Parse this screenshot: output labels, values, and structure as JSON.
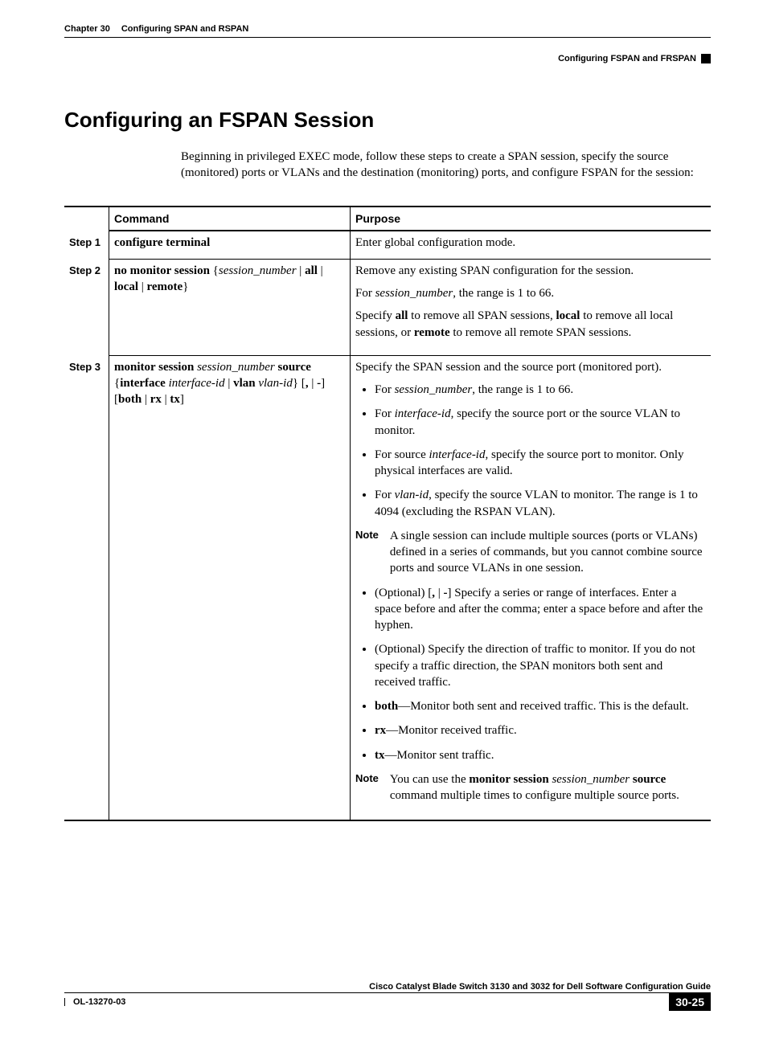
{
  "header": {
    "chapter_label": "Chapter 30",
    "chapter_title": "Configuring SPAN and RSPAN",
    "section_right": "Configuring FSPAN and FRSPAN"
  },
  "title": "Configuring an FSPAN Session",
  "intro": "Beginning in privileged EXEC mode, follow these steps to create a SPAN session, specify the source (monitored) ports or VLANs and the destination (monitoring) ports, and configure FSPAN for the session:",
  "table": {
    "head_command": "Command",
    "head_purpose": "Purpose",
    "step1": {
      "label": "Step 1",
      "command": "configure terminal",
      "purpose": "Enter global configuration mode."
    },
    "step2": {
      "label": "Step 2",
      "purpose_p1": "Remove any existing SPAN configuration for the session.",
      "purpose_p2_a": "For ",
      "purpose_p2_i": "session_number",
      "purpose_p2_b": ", the range is 1 to 66.",
      "purpose_p3_a": "Specify ",
      "purpose_p3_b1": "all",
      "purpose_p3_c": " to remove all SPAN sessions, ",
      "purpose_p3_b2": "local",
      "purpose_p3_d": " to remove all local sessions, or ",
      "purpose_p3_b3": "remote",
      "purpose_p3_e": " to remove all remote SPAN sessions."
    },
    "step3": {
      "label": "Step 3",
      "purpose_p1": "Specify the SPAN session and the source port (monitored port).",
      "b1_a": "For ",
      "b1_i": "session_number",
      "b1_b": ", the range is 1 to 66.",
      "b2_a": "For ",
      "b2_i": "interface-id",
      "b2_b": ", specify the source port or the source VLAN to monitor.",
      "b3_a": "For source ",
      "b3_i": "interface-id",
      "b3_b": ", specify the source port to monitor. Only physical interfaces are valid.",
      "b4_a": "For ",
      "b4_i": "vlan-id",
      "b4_b": ", specify the source VLAN to monitor. The range is 1 to 4094 (excluding the RSPAN VLAN).",
      "note1_label": "Note",
      "note1_text": "A single session can include multiple sources (ports or VLANs) defined in a series of commands, but you cannot combine source ports and source VLANs in one session.",
      "b5_a": "(Optional) [",
      "b5_b1": ",",
      "b5_mid": " | ",
      "b5_b2": "-",
      "b5_b": "] Specify a series or range of interfaces. Enter a space before and after the comma; enter a space before and after the hyphen.",
      "b6": "(Optional) Specify the direction of traffic to monitor. If you do not specify a traffic direction, the SPAN monitors both sent and received traffic.",
      "b7_b": "both",
      "b7_t": "—Monitor both sent and received traffic. This is the default.",
      "b8_b": "rx",
      "b8_t": "—Monitor received traffic.",
      "b9_b": "tx",
      "b9_t": "—Monitor sent traffic.",
      "note2_label": "Note",
      "note2_a": "You can use the ",
      "note2_b1": "monitor session",
      "note2_sp": " ",
      "note2_i": "session_number",
      "note2_b2": " source",
      "note2_c": " command multiple times to configure multiple source ports."
    }
  },
  "footer": {
    "guide_title": "Cisco Catalyst Blade Switch 3130 and 3032 for Dell Software Configuration Guide",
    "doc_id": "OL-13270-03",
    "page_num": "30-25"
  }
}
